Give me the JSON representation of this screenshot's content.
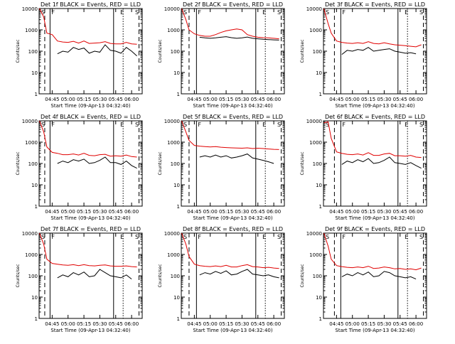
{
  "figure": {
    "xlabel": "Start Time (09-Apr-13 04:32:40)",
    "ylabel": "Counts/sec",
    "x_tick_labels": [
      "04:45",
      "05:00",
      "05:15",
      "05:30",
      "05:45",
      "06:00"
    ],
    "y_tick_labels": [
      "1",
      "10",
      "100",
      "1000",
      "10000"
    ],
    "colors": {
      "events": "#000000",
      "lld": "#e00000",
      "axes": "#000000"
    },
    "markers": [
      "S",
      "F",
      "E",
      "S"
    ]
  },
  "chart_data": [
    {
      "type": "line",
      "title": "Det 1f BLACK = Events, RED = LLD",
      "ylog": true,
      "ylim": [
        1,
        10000
      ],
      "xlim": [
        "04:32:40",
        "06:10"
      ],
      "x_dates": [
        "04:33",
        "04:37",
        "04:40",
        "04:45",
        "04:50",
        "04:55",
        "05:00",
        "05:05",
        "05:10",
        "05:15",
        "05:20",
        "05:25",
        "05:30",
        "05:35",
        "05:40",
        "05:45",
        "05:50",
        "05:55",
        "06:00",
        "06:05"
      ],
      "series": [
        {
          "name": "LLD",
          "values": [
            10000,
            4000,
            700,
            600,
            300,
            270,
            260,
            290,
            240,
            300,
            230,
            240,
            250,
            280,
            230,
            220,
            220,
            260,
            220,
            210
          ]
        },
        {
          "name": "Events",
          "values": [
            null,
            null,
            null,
            null,
            75,
            100,
            90,
            150,
            120,
            140,
            80,
            100,
            90,
            200,
            110,
            100,
            80,
            150,
            100,
            60
          ]
        }
      ],
      "vlines": [
        {
          "x": "04:38",
          "style": "dashed"
        },
        {
          "x": "04:43",
          "style": "solid"
        },
        {
          "x": "05:43",
          "style": "solid"
        },
        {
          "x": "05:52",
          "style": "dotted"
        },
        {
          "x": "06:07",
          "style": "dashed"
        }
      ]
    },
    {
      "type": "line",
      "title": "Det 2f BLACK = Events, RED = LLD",
      "ylog": true,
      "ylim": [
        1,
        10000
      ],
      "xlim": [
        "04:32:40",
        "06:10"
      ],
      "x_dates": [
        "04:33",
        "04:37",
        "04:40",
        "04:45",
        "04:50",
        "04:55",
        "05:00",
        "05:05",
        "05:10",
        "05:15",
        "05:20",
        "05:25",
        "05:30",
        "05:35",
        "05:40",
        "05:45",
        "05:50",
        "05:55",
        "06:00",
        "06:05"
      ],
      "series": [
        {
          "name": "LLD",
          "values": [
            10000,
            3000,
            1000,
            650,
            550,
            500,
            500,
            600,
            750,
            900,
            1000,
            1100,
            1000,
            600,
            500,
            450,
            430,
            420,
            400,
            380
          ]
        },
        {
          "name": "Events",
          "values": [
            null,
            null,
            null,
            null,
            450,
            420,
            400,
            420,
            450,
            480,
            430,
            400,
            420,
            460,
            400,
            380,
            360,
            350,
            340,
            330
          ]
        }
      ],
      "vlines": [
        {
          "x": "04:40",
          "style": "dashed"
        },
        {
          "x": "04:47",
          "style": "solid"
        },
        {
          "x": "05:43",
          "style": "solid"
        },
        {
          "x": "05:52",
          "style": "dotted"
        },
        {
          "x": "06:07",
          "style": "dashed"
        }
      ]
    },
    {
      "type": "line",
      "title": "Det 3f BLACK = Events, RED = LLD",
      "ylog": true,
      "ylim": [
        1,
        10000
      ],
      "xlim": [
        "04:32:40",
        "06:10"
      ],
      "x_dates": [
        "04:33",
        "04:37",
        "04:40",
        "04:45",
        "04:50",
        "04:55",
        "05:00",
        "05:05",
        "05:10",
        "05:15",
        "05:20",
        "05:25",
        "05:30",
        "05:35",
        "05:40",
        "05:45",
        "05:50",
        "05:55",
        "06:00",
        "06:05"
      ],
      "series": [
        {
          "name": "LLD",
          "values": [
            10000,
            2000,
            700,
            300,
            260,
            240,
            230,
            250,
            230,
            280,
            230,
            220,
            250,
            220,
            200,
            190,
            180,
            170,
            160,
            200
          ]
        },
        {
          "name": "Events",
          "values": [
            null,
            null,
            null,
            null,
            70,
            110,
            100,
            120,
            110,
            150,
            100,
            110,
            120,
            130,
            100,
            90,
            80,
            85,
            75,
            null
          ]
        }
      ],
      "vlines": [
        {
          "x": "04:43",
          "style": "dashed"
        },
        {
          "x": "04:49",
          "style": "solid"
        },
        {
          "x": "05:43",
          "style": "solid"
        },
        {
          "x": "05:52",
          "style": "dotted"
        },
        {
          "x": "06:07",
          "style": "dashed"
        }
      ]
    },
    {
      "type": "line",
      "title": "Det 4f BLACK = Events, RED = LLD",
      "ylog": true,
      "ylim": [
        1,
        10000
      ],
      "xlim": [
        "04:32:40",
        "06:10"
      ],
      "x_dates": [
        "04:33",
        "04:37",
        "04:40",
        "04:45",
        "04:50",
        "04:55",
        "05:00",
        "05:05",
        "05:10",
        "05:15",
        "05:20",
        "05:25",
        "05:30",
        "05:35",
        "05:40",
        "05:45",
        "05:50",
        "05:55",
        "06:00",
        "06:05"
      ],
      "series": [
        {
          "name": "LLD",
          "values": [
            10000,
            3000,
            600,
            330,
            300,
            260,
            260,
            280,
            250,
            300,
            240,
            230,
            260,
            270,
            220,
            230,
            220,
            250,
            210,
            200
          ]
        },
        {
          "name": "Events",
          "values": [
            null,
            null,
            null,
            null,
            100,
            130,
            110,
            150,
            130,
            160,
            100,
            110,
            140,
            200,
            110,
            110,
            90,
            130,
            80,
            60
          ]
        }
      ],
      "vlines": [
        {
          "x": "04:38",
          "style": "dashed"
        },
        {
          "x": "04:43",
          "style": "solid"
        },
        {
          "x": "05:43",
          "style": "solid"
        },
        {
          "x": "05:52",
          "style": "dotted"
        },
        {
          "x": "06:07",
          "style": "dashed"
        }
      ]
    },
    {
      "type": "line",
      "title": "Det 5f BLACK = Events, RED = LLD",
      "ylog": true,
      "ylim": [
        1,
        10000
      ],
      "xlim": [
        "04:32:40",
        "06:10"
      ],
      "x_dates": [
        "04:33",
        "04:37",
        "04:40",
        "04:45",
        "04:50",
        "04:55",
        "05:00",
        "05:05",
        "05:10",
        "05:15",
        "05:20",
        "05:25",
        "05:30",
        "05:35",
        "05:40",
        "05:45",
        "05:50",
        "05:55",
        "06:00",
        "06:05"
      ],
      "series": [
        {
          "name": "LLD",
          "values": [
            10000,
            3000,
            1200,
            700,
            650,
            620,
            600,
            620,
            580,
            560,
            540,
            530,
            520,
            540,
            500,
            520,
            500,
            480,
            460,
            450
          ]
        },
        {
          "name": "Events",
          "values": [
            null,
            null,
            null,
            null,
            200,
            230,
            200,
            250,
            200,
            230,
            180,
            200,
            230,
            280,
            180,
            160,
            140,
            120,
            100,
            null
          ]
        }
      ],
      "vlines": [
        {
          "x": "04:40",
          "style": "dashed"
        },
        {
          "x": "04:47",
          "style": "solid"
        },
        {
          "x": "05:43",
          "style": "solid"
        },
        {
          "x": "05:52",
          "style": "dotted"
        },
        {
          "x": "06:07",
          "style": "dashed"
        }
      ]
    },
    {
      "type": "line",
      "title": "Det 6f BLACK = Events, RED = LLD",
      "ylog": true,
      "ylim": [
        1,
        10000
      ],
      "xlim": [
        "04:32:40",
        "06:10"
      ],
      "x_dates": [
        "04:33",
        "04:37",
        "04:40",
        "04:45",
        "04:50",
        "04:55",
        "05:00",
        "05:05",
        "05:10",
        "05:15",
        "05:20",
        "05:25",
        "05:30",
        "05:35",
        "05:40",
        "05:45",
        "05:50",
        "05:55",
        "06:00",
        "06:05"
      ],
      "series": [
        {
          "name": "LLD",
          "values": [
            8000,
            9000,
            1500,
            350,
            300,
            270,
            260,
            280,
            250,
            320,
            240,
            240,
            280,
            300,
            230,
            230,
            220,
            240,
            200,
            190
          ]
        },
        {
          "name": "Events",
          "values": [
            null,
            null,
            null,
            null,
            90,
            130,
            110,
            150,
            120,
            170,
            100,
            110,
            140,
            200,
            110,
            100,
            90,
            110,
            80,
            60
          ]
        }
      ],
      "vlines": [
        {
          "x": "04:43",
          "style": "dashed"
        },
        {
          "x": "04:49",
          "style": "solid"
        },
        {
          "x": "05:43",
          "style": "solid"
        },
        {
          "x": "05:52",
          "style": "dotted"
        },
        {
          "x": "06:07",
          "style": "dashed"
        }
      ]
    },
    {
      "type": "line",
      "title": "Det 7f BLACK = Events, RED = LLD",
      "ylog": true,
      "ylim": [
        1,
        10000
      ],
      "xlim": [
        "04:32:40",
        "06:10"
      ],
      "x_dates": [
        "04:33",
        "04:37",
        "04:40",
        "04:45",
        "04:50",
        "04:55",
        "05:00",
        "05:05",
        "05:10",
        "05:15",
        "05:20",
        "05:25",
        "05:30",
        "05:35",
        "05:40",
        "05:45",
        "05:50",
        "05:55",
        "06:00",
        "06:05"
      ],
      "series": [
        {
          "name": "LLD",
          "values": [
            10000,
            3000,
            600,
            380,
            350,
            320,
            310,
            330,
            300,
            330,
            300,
            290,
            310,
            320,
            290,
            280,
            280,
            290,
            270,
            260
          ]
        },
        {
          "name": "Events",
          "values": [
            null,
            null,
            null,
            null,
            80,
            110,
            90,
            140,
            110,
            150,
            90,
            100,
            200,
            140,
            100,
            90,
            80,
            110,
            70,
            null
          ]
        }
      ],
      "vlines": [
        {
          "x": "04:38",
          "style": "dashed"
        },
        {
          "x": "04:43",
          "style": "solid"
        },
        {
          "x": "05:43",
          "style": "solid"
        },
        {
          "x": "05:52",
          "style": "dotted"
        },
        {
          "x": "06:07",
          "style": "dashed"
        }
      ]
    },
    {
      "type": "line",
      "title": "Det 8f BLACK = Events, RED = LLD",
      "ylog": true,
      "ylim": [
        1,
        10000
      ],
      "xlim": [
        "04:32:40",
        "06:10"
      ],
      "x_dates": [
        "04:33",
        "04:37",
        "04:40",
        "04:45",
        "04:50",
        "04:55",
        "05:00",
        "05:05",
        "05:10",
        "05:15",
        "05:20",
        "05:25",
        "05:30",
        "05:35",
        "05:40",
        "05:45",
        "05:50",
        "05:55",
        "06:00",
        "06:05"
      ],
      "series": [
        {
          "name": "LLD",
          "values": [
            10000,
            3000,
            800,
            350,
            300,
            280,
            270,
            290,
            270,
            310,
            260,
            260,
            300,
            330,
            270,
            260,
            240,
            250,
            230,
            220
          ]
        },
        {
          "name": "Events",
          "values": [
            null,
            null,
            null,
            null,
            110,
            140,
            120,
            160,
            130,
            170,
            110,
            120,
            160,
            200,
            120,
            110,
            100,
            110,
            90,
            80
          ]
        }
      ],
      "vlines": [
        {
          "x": "04:40",
          "style": "dashed"
        },
        {
          "x": "04:47",
          "style": "solid"
        },
        {
          "x": "05:43",
          "style": "solid"
        },
        {
          "x": "05:52",
          "style": "dotted"
        },
        {
          "x": "06:07",
          "style": "dashed"
        }
      ]
    },
    {
      "type": "line",
      "title": "Det 9f BLACK = Events, RED = LLD",
      "ylog": true,
      "ylim": [
        1,
        10000
      ],
      "xlim": [
        "04:32:40",
        "06:10"
      ],
      "x_dates": [
        "04:33",
        "04:37",
        "04:40",
        "04:45",
        "04:50",
        "04:55",
        "05:00",
        "05:05",
        "05:10",
        "05:15",
        "05:20",
        "05:25",
        "05:30",
        "05:35",
        "05:40",
        "05:45",
        "05:50",
        "05:55",
        "06:00",
        "06:05"
      ],
      "series": [
        {
          "name": "LLD",
          "values": [
            10000,
            2500,
            600,
            300,
            270,
            250,
            240,
            260,
            240,
            280,
            220,
            230,
            260,
            240,
            210,
            220,
            200,
            210,
            190,
            230
          ]
        },
        {
          "name": "Events",
          "values": [
            null,
            null,
            null,
            null,
            90,
            120,
            100,
            140,
            110,
            150,
            90,
            100,
            160,
            140,
            100,
            90,
            80,
            90,
            70,
            null
          ]
        }
      ],
      "vlines": [
        {
          "x": "04:43",
          "style": "dashed"
        },
        {
          "x": "04:49",
          "style": "solid"
        },
        {
          "x": "05:43",
          "style": "solid"
        },
        {
          "x": "05:52",
          "style": "dotted"
        },
        {
          "x": "06:07",
          "style": "dashed"
        }
      ]
    }
  ]
}
